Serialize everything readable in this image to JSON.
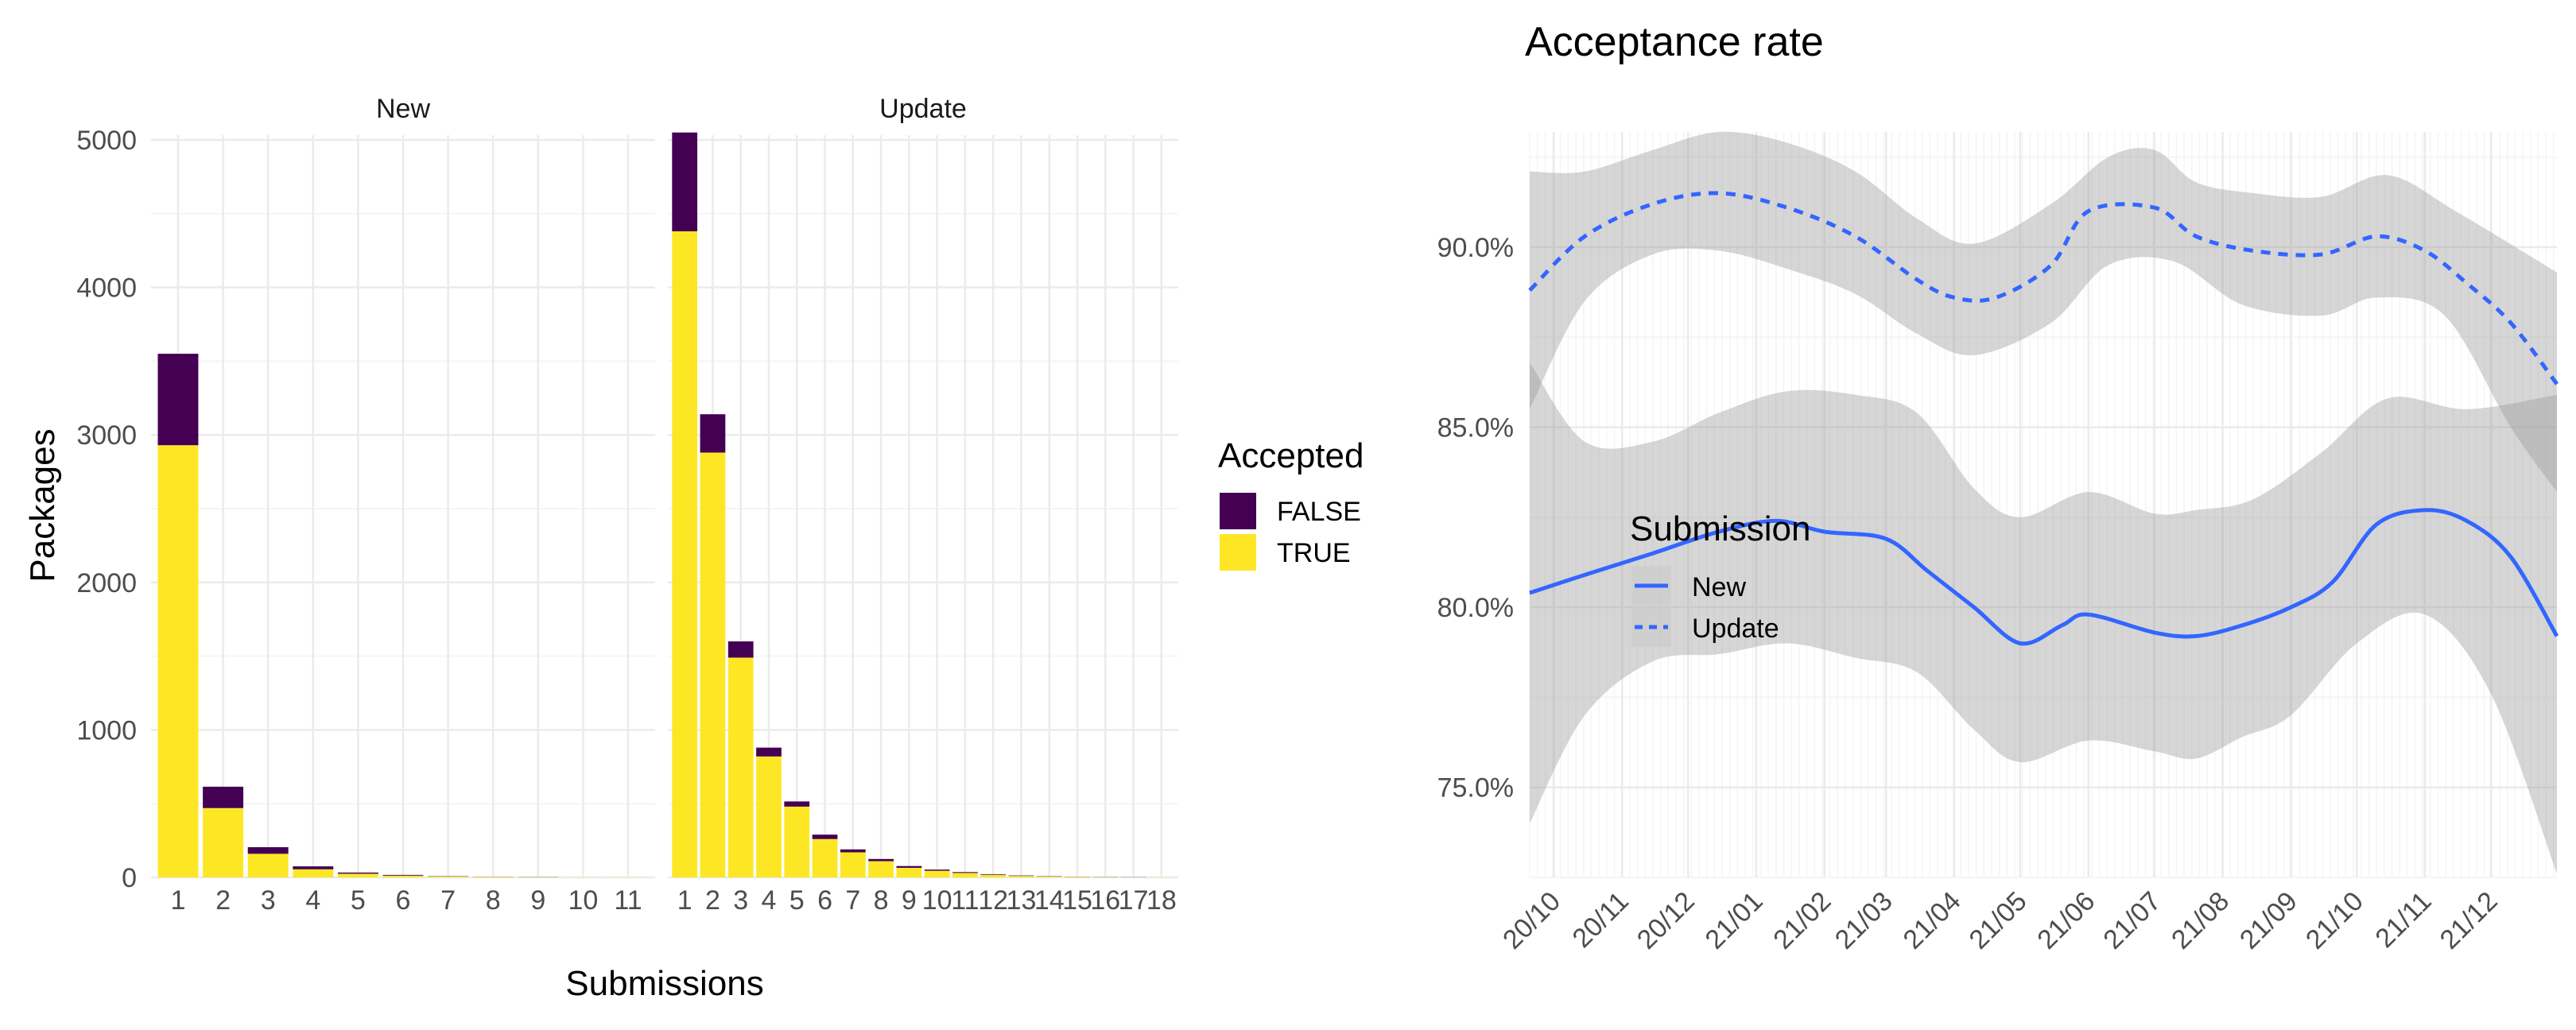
{
  "chart_data": [
    {
      "type": "bar",
      "stacked": true,
      "panels": [
        {
          "title": "New",
          "categories": [
            "1",
            "2",
            "3",
            "4",
            "5",
            "6",
            "7",
            "8",
            "9",
            "10",
            "11"
          ],
          "series": [
            {
              "name": "TRUE",
              "values": [
                2930,
                470,
                160,
                55,
                25,
                12,
                6,
                3,
                2,
                1,
                1
              ]
            },
            {
              "name": "FALSE",
              "values": [
                620,
                145,
                45,
                20,
                8,
                5,
                2,
                1,
                1,
                0,
                0
              ]
            }
          ]
        },
        {
          "title": "Update",
          "categories": [
            "1",
            "2",
            "3",
            "4",
            "5",
            "6",
            "7",
            "8",
            "9",
            "10",
            "11",
            "12",
            "13",
            "14",
            "15",
            "16",
            "17",
            "18"
          ],
          "series": [
            {
              "name": "TRUE",
              "values": [
                4380,
                2880,
                1490,
                820,
                480,
                260,
                170,
                110,
                65,
                45,
                30,
                18,
                10,
                6,
                4,
                2,
                1,
                1
              ]
            },
            {
              "name": "FALSE",
              "values": [
                670,
                260,
                110,
                60,
                35,
                30,
                20,
                15,
                12,
                8,
                6,
                4,
                3,
                2,
                1,
                1,
                1,
                0
              ]
            }
          ]
        }
      ],
      "xlabel": "Submissions",
      "ylabel": "Packages",
      "ylim": [
        0,
        5000
      ],
      "yticks": [
        "0",
        "1000",
        "2000",
        "3000",
        "4000",
        "5000"
      ],
      "legend": {
        "title": "Accepted",
        "placement": "right",
        "items": [
          {
            "label": "FALSE",
            "color": "#440154"
          },
          {
            "label": "TRUE",
            "color": "#FDE725"
          }
        ]
      },
      "grid": true
    },
    {
      "type": "line",
      "title": "Acceptance rate",
      "x": [
        "2020-10-01",
        "2020-11-01",
        "2020-12-01",
        "2021-01-01",
        "2021-02-01",
        "2021-03-01",
        "2021-04-01",
        "2021-05-01",
        "2021-06-01",
        "2021-07-01",
        "2021-08-01",
        "2021-09-01",
        "2021-10-01",
        "2021-11-01",
        "2021-12-01"
      ],
      "xticks": [
        "20/10",
        "20/11",
        "20/12",
        "21/01",
        "21/02",
        "21/03",
        "21/04",
        "21/05",
        "21/06",
        "21/07",
        "21/08",
        "21/09",
        "21/10",
        "21/11",
        "21/12"
      ],
      "xlim": [
        "2020-09-20",
        "2021-12-31"
      ],
      "ylim": [
        72.5,
        93.2
      ],
      "yticks": [
        "75.0%",
        "80.0%",
        "85.0%",
        "90.0%"
      ],
      "ytick_values": [
        75,
        80,
        85,
        90
      ],
      "series": [
        {
          "name": "New",
          "style": "solid",
          "color": "#3366FF",
          "points": [
            [
              "2020-09-20",
              80.4
            ],
            [
              "2020-10-15",
              80.9
            ],
            [
              "2020-11-15",
              81.5
            ],
            [
              "2020-12-15",
              82.1
            ],
            [
              "2021-01-10",
              82.4
            ],
            [
              "2021-02-01",
              82.1
            ],
            [
              "2021-03-01",
              81.9
            ],
            [
              "2021-03-20",
              81.0
            ],
            [
              "2021-04-10",
              80.0
            ],
            [
              "2021-05-01",
              79.0
            ],
            [
              "2021-05-20",
              79.5
            ],
            [
              "2021-06-01",
              79.8
            ],
            [
              "2021-07-01",
              79.3
            ],
            [
              "2021-07-20",
              79.2
            ],
            [
              "2021-08-10",
              79.5
            ],
            [
              "2021-09-01",
              80.0
            ],
            [
              "2021-09-20",
              80.7
            ],
            [
              "2021-10-10",
              82.3
            ],
            [
              "2021-11-01",
              82.7
            ],
            [
              "2021-11-20",
              82.4
            ],
            [
              "2021-12-10",
              81.4
            ],
            [
              "2021-12-31",
              79.2
            ]
          ],
          "ci_lower": [
            [
              "2020-09-20",
              74.0
            ],
            [
              "2020-10-15",
              77.0
            ],
            [
              "2020-11-15",
              78.5
            ],
            [
              "2020-12-15",
              78.7
            ],
            [
              "2021-01-15",
              79.0
            ],
            [
              "2021-02-15",
              78.6
            ],
            [
              "2021-03-15",
              78.2
            ],
            [
              "2021-04-10",
              76.6
            ],
            [
              "2021-05-01",
              75.7
            ],
            [
              "2021-06-01",
              76.3
            ],
            [
              "2021-07-01",
              76.0
            ],
            [
              "2021-07-20",
              75.8
            ],
            [
              "2021-08-10",
              76.4
            ],
            [
              "2021-09-01",
              77.0
            ],
            [
              "2021-10-01",
              79.0
            ],
            [
              "2021-11-01",
              79.8
            ],
            [
              "2021-12-01",
              77.6
            ],
            [
              "2021-12-31",
              72.6
            ]
          ],
          "ci_upper": [
            [
              "2020-09-20",
              86.8
            ],
            [
              "2020-10-15",
              84.6
            ],
            [
              "2020-11-15",
              84.6
            ],
            [
              "2020-12-15",
              85.4
            ],
            [
              "2021-01-15",
              86.0
            ],
            [
              "2021-02-15",
              85.9
            ],
            [
              "2021-03-15",
              85.4
            ],
            [
              "2021-04-10",
              83.3
            ],
            [
              "2021-05-01",
              82.5
            ],
            [
              "2021-06-01",
              83.2
            ],
            [
              "2021-07-01",
              82.6
            ],
            [
              "2021-07-20",
              82.7
            ],
            [
              "2021-08-15",
              83.0
            ],
            [
              "2021-09-15",
              84.3
            ],
            [
              "2021-10-15",
              85.8
            ],
            [
              "2021-11-20",
              85.5
            ],
            [
              "2021-12-31",
              85.9
            ]
          ]
        },
        {
          "name": "Update",
          "style": "dashed",
          "color": "#3366FF",
          "points": [
            [
              "2020-09-20",
              88.8
            ],
            [
              "2020-10-15",
              90.3
            ],
            [
              "2020-11-15",
              91.2
            ],
            [
              "2020-12-15",
              91.5
            ],
            [
              "2021-01-15",
              91.1
            ],
            [
              "2021-02-15",
              90.3
            ],
            [
              "2021-03-15",
              89.1
            ],
            [
              "2021-04-01",
              88.6
            ],
            [
              "2021-04-20",
              88.6
            ],
            [
              "2021-05-15",
              89.5
            ],
            [
              "2021-06-01",
              91.0
            ],
            [
              "2021-07-01",
              91.1
            ],
            [
              "2021-07-20",
              90.3
            ],
            [
              "2021-08-15",
              89.9
            ],
            [
              "2021-09-15",
              89.8
            ],
            [
              "2021-10-10",
              90.3
            ],
            [
              "2021-11-01",
              89.9
            ],
            [
              "2021-11-20",
              89.0
            ],
            [
              "2021-12-10",
              87.9
            ],
            [
              "2021-12-31",
              86.2
            ]
          ],
          "ci_lower": [
            [
              "2020-09-20",
              85.5
            ],
            [
              "2020-10-15",
              88.5
            ],
            [
              "2020-11-15",
              89.8
            ],
            [
              "2020-12-15",
              89.9
            ],
            [
              "2021-01-15",
              89.4
            ],
            [
              "2021-02-15",
              88.7
            ],
            [
              "2021-03-15",
              87.6
            ],
            [
              "2021-04-10",
              87.0
            ],
            [
              "2021-05-15",
              87.9
            ],
            [
              "2021-06-10",
              89.5
            ],
            [
              "2021-07-10",
              89.6
            ],
            [
              "2021-08-10",
              88.4
            ],
            [
              "2021-09-15",
              88.1
            ],
            [
              "2021-10-10",
              88.6
            ],
            [
              "2021-11-10",
              88.1
            ],
            [
              "2021-12-10",
              85.0
            ],
            [
              "2021-12-31",
              83.2
            ]
          ],
          "ci_upper": [
            [
              "2020-09-20",
              92.1
            ],
            [
              "2020-10-15",
              92.1
            ],
            [
              "2020-11-15",
              92.7
            ],
            [
              "2020-12-15",
              93.2
            ],
            [
              "2021-01-15",
              92.9
            ],
            [
              "2021-02-15",
              92.1
            ],
            [
              "2021-03-15",
              90.8
            ],
            [
              "2021-04-10",
              90.1
            ],
            [
              "2021-05-15",
              91.2
            ],
            [
              "2021-06-10",
              92.5
            ],
            [
              "2021-07-01",
              92.7
            ],
            [
              "2021-07-20",
              91.8
            ],
            [
              "2021-08-15",
              91.5
            ],
            [
              "2021-09-15",
              91.4
            ],
            [
              "2021-10-15",
              92.0
            ],
            [
              "2021-11-15",
              91.0
            ],
            [
              "2021-12-31",
              89.3
            ]
          ]
        }
      ],
      "legend": {
        "title": "Submission",
        "placement": "inside-left",
        "items": [
          {
            "label": "New",
            "style": "solid"
          },
          {
            "label": "Update",
            "style": "dashed"
          }
        ]
      },
      "ribbon_color": "#999999",
      "grid": true
    }
  ]
}
